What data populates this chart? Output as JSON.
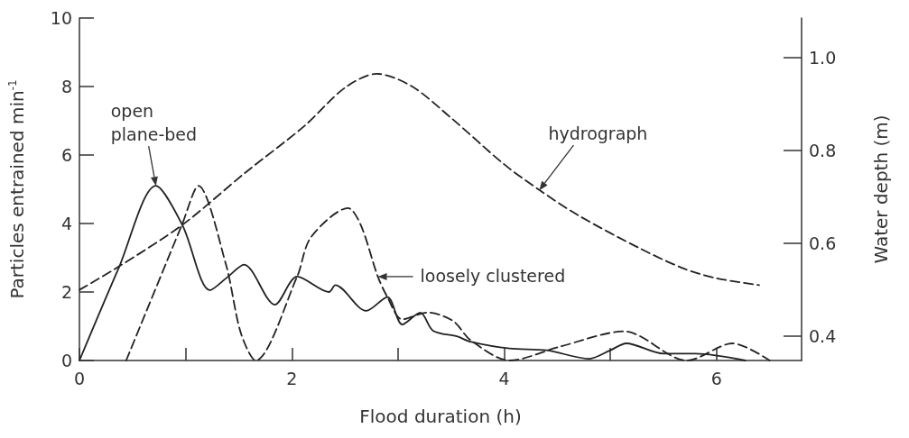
{
  "chart_data": {
    "type": "line",
    "xlabel": "Flood duration (h)",
    "ylabel": "Particles entrained min$^{-1}$",
    "y2label": "Water depth (m)",
    "xlim": [
      0,
      6.8
    ],
    "xticks": [
      0,
      {
        "value": 1,
        "label": null
      },
      2,
      {
        "value": 3,
        "label": null
      },
      4,
      {
        "value": 5,
        "label": null
      },
      6
    ],
    "ylim": [
      0,
      10
    ],
    "yticks": [
      0,
      2,
      4,
      6,
      8,
      10
    ],
    "y2lim": [
      0.348,
      1.085
    ],
    "y2ticks": [
      {
        "value": 0.4,
        "label": "0.4"
      },
      {
        "value": 0.6,
        "label": "0.6"
      },
      {
        "value": 0.8,
        "label": "0.8"
      },
      {
        "value": 1.0,
        "label": "1.0"
      }
    ],
    "grid": false,
    "marker": "none",
    "series": [
      {
        "color": "#222222",
        "line_style": "solid",
        "x": [
          0,
          0.37,
          0.72,
          0.97,
          1.23,
          1.4,
          1.55,
          1.84,
          2.05,
          2.35,
          2.41,
          2.7,
          2.9,
          3.04,
          3.21,
          3.33,
          3.56,
          3.68,
          4.05,
          4.4,
          4.8,
          5.0,
          5.15,
          5.5,
          5.8,
          6.27
        ],
        "values": [
          0,
          2.7,
          5.1,
          3.95,
          2.05,
          2.45,
          2.8,
          1.63,
          2.45,
          2.0,
          2.2,
          1.45,
          1.85,
          1.05,
          1.4,
          0.87,
          0.7,
          0.55,
          0.35,
          0.3,
          0.05,
          0.3,
          0.5,
          0.2,
          0.2,
          0
        ]
      },
      {
        "color": "#222222",
        "line_style": "dashed",
        "x": [
          0.44,
          0.97,
          1.12,
          1.38,
          1.52,
          1.66,
          2.05,
          2.18,
          2.53,
          2.65,
          2.81,
          2.9,
          3.04,
          3.28,
          3.52,
          3.68,
          4.05,
          4.52,
          5.13,
          5.72,
          6.15,
          6.5
        ],
        "values": [
          0,
          4.0,
          5.1,
          2.8,
          0.8,
          0,
          2.45,
          3.6,
          4.45,
          3.95,
          2.45,
          1.85,
          1.2,
          1.4,
          1.15,
          0.6,
          0,
          0.4,
          0.85,
          0,
          0.5,
          0
        ]
      },
      {
        "color": "#222222",
        "line_style": "dashed",
        "axis": "y2",
        "x": [
          0,
          0.37,
          0.97,
          1.55,
          2.12,
          2.5,
          2.8,
          3.13,
          3.5,
          4.0,
          4.33,
          4.7,
          5.28,
          5.7,
          6.0,
          6.4
        ],
        "values": [
          0.5,
          0.55,
          0.64,
          0.75,
          0.853,
          0.935,
          0.965,
          0.938,
          0.87,
          0.77,
          0.715,
          0.66,
          0.589,
          0.545,
          0.525,
          0.51
        ]
      }
    ],
    "annotations": [
      {
        "text": "open\nplane-bed",
        "x": 0.72,
        "y": 5.1
      },
      {
        "text": "hydrograph",
        "x": 4.33,
        "y": 4.97
      },
      {
        "text": "loosely clustered",
        "x": 2.81,
        "y": 2.45
      }
    ]
  }
}
